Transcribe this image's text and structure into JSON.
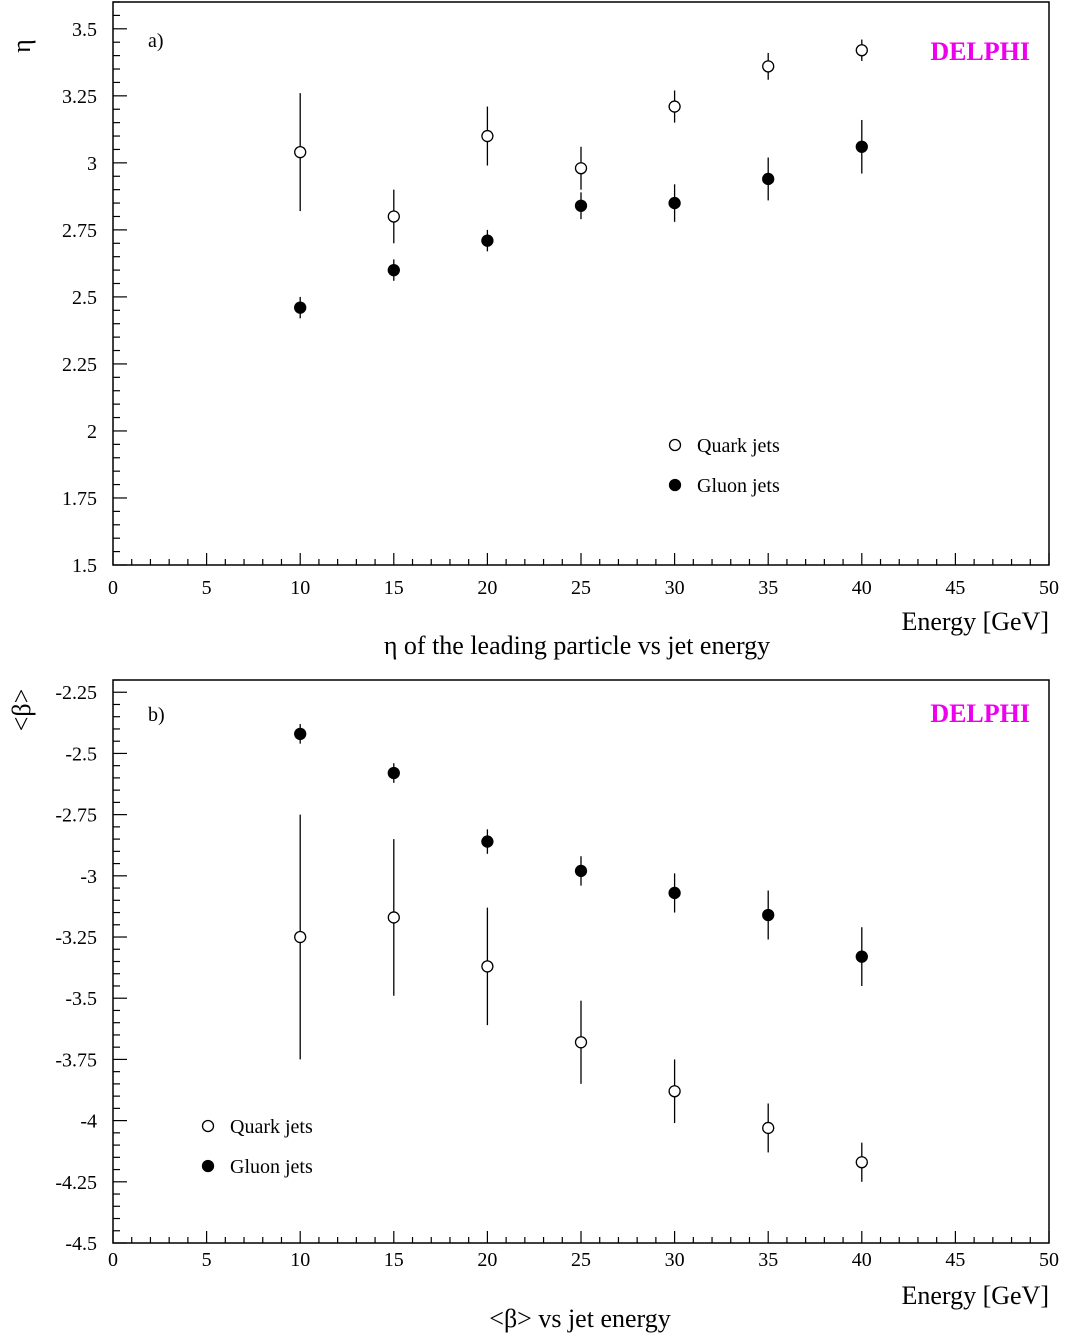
{
  "brand_color": "#ee00ee",
  "chart_data": [
    {
      "type": "scatter",
      "panel_label": "a)",
      "brand": "DELPHI",
      "caption": "η of the leading particle vs jet energy",
      "xlabel": "Energy [GeV]",
      "ylabel": "η",
      "xlim": [
        0,
        50
      ],
      "ylim": [
        1.5,
        3.6
      ],
      "x_ticks": [
        0,
        5,
        10,
        15,
        20,
        25,
        30,
        35,
        40,
        45,
        50
      ],
      "y_ticks": [
        1.5,
        1.75,
        2,
        2.25,
        2.5,
        2.75,
        3,
        3.25,
        3.5
      ],
      "y_tick_labels": [
        "1.5",
        "1.75",
        "2",
        "2.25",
        "2.5",
        "2.75",
        "3",
        "3.25",
        "3.5"
      ],
      "legend_position": "center-right",
      "series": [
        {
          "name": "Quark jets",
          "marker": "open-circle",
          "x": [
            10,
            15,
            20,
            25,
            30,
            35,
            40
          ],
          "y": [
            3.04,
            2.8,
            3.1,
            2.98,
            3.21,
            3.36,
            3.42
          ],
          "err": [
            0.22,
            0.1,
            0.11,
            0.08,
            0.06,
            0.05,
            0.04
          ]
        },
        {
          "name": "Gluon jets",
          "marker": "filled-circle",
          "x": [
            10,
            15,
            20,
            25,
            30,
            35,
            40
          ],
          "y": [
            2.46,
            2.6,
            2.71,
            2.84,
            2.85,
            2.94,
            3.06
          ],
          "err": [
            0.04,
            0.04,
            0.04,
            0.05,
            0.07,
            0.08,
            0.1
          ]
        }
      ]
    },
    {
      "type": "scatter",
      "panel_label": "b)",
      "brand": "DELPHI",
      "caption": "<β> vs jet energy",
      "xlabel": "Energy [GeV]",
      "ylabel": "<β>",
      "xlim": [
        0,
        50
      ],
      "ylim": [
        -4.5,
        -2.2
      ],
      "x_ticks": [
        0,
        5,
        10,
        15,
        20,
        25,
        30,
        35,
        40,
        45,
        50
      ],
      "y_ticks": [
        -4.5,
        -4.25,
        -4,
        -3.75,
        -3.5,
        -3.25,
        -3,
        -2.75,
        -2.5,
        -2.25
      ],
      "y_tick_labels": [
        "-4.5",
        "-4.25",
        "-4",
        "-3.75",
        "-3.5",
        "-3.25",
        "-3",
        "-2.75",
        "-2.5",
        "-2.25"
      ],
      "legend_position": "bottom-left",
      "series": [
        {
          "name": "Quark jets",
          "marker": "open-circle",
          "x": [
            10,
            15,
            20,
            25,
            30,
            35,
            40
          ],
          "y": [
            -3.25,
            -3.17,
            -3.37,
            -3.68,
            -3.88,
            -4.03,
            -4.17
          ],
          "err": [
            0.5,
            0.32,
            0.24,
            0.17,
            0.13,
            0.1,
            0.08
          ]
        },
        {
          "name": "Gluon jets",
          "marker": "filled-circle",
          "x": [
            10,
            15,
            20,
            25,
            30,
            35,
            40
          ],
          "y": [
            -2.42,
            -2.58,
            -2.86,
            -2.98,
            -3.07,
            -3.16,
            -3.33
          ],
          "err": [
            0.04,
            0.04,
            0.05,
            0.06,
            0.08,
            0.1,
            0.12
          ]
        }
      ]
    }
  ]
}
